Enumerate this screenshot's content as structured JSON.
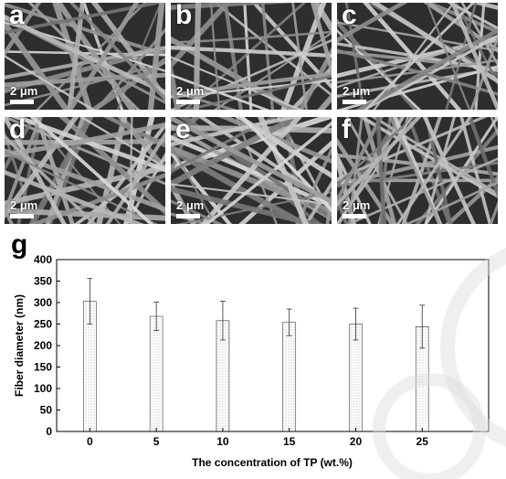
{
  "panels": [
    {
      "label": "a",
      "scale": "2 μm"
    },
    {
      "label": "b",
      "scale": "2 μm"
    },
    {
      "label": "c",
      "scale": "2 μm"
    },
    {
      "label": "d",
      "scale": "2 μm"
    },
    {
      "label": "e",
      "scale": "2 μm"
    },
    {
      "label": "f",
      "scale": "2 μm"
    }
  ],
  "chart_label": "g",
  "chart_data": {
    "type": "bar",
    "categories": [
      "0",
      "5",
      "10",
      "15",
      "20",
      "25"
    ],
    "values": [
      303,
      268,
      258,
      254,
      250,
      244
    ],
    "errors": [
      53,
      33,
      45,
      31,
      37,
      50
    ],
    "xlabel": "The concentration of TP (wt.%)",
    "ylabel": "Fiber diameter (nm)",
    "ylim": [
      0,
      400
    ],
    "yticks": [
      "0",
      "50",
      "100",
      "150",
      "200",
      "250",
      "300",
      "350",
      "400"
    ],
    "grid": false,
    "bar_pattern": "dotted"
  },
  "watermark_color": "#dcdcdc"
}
